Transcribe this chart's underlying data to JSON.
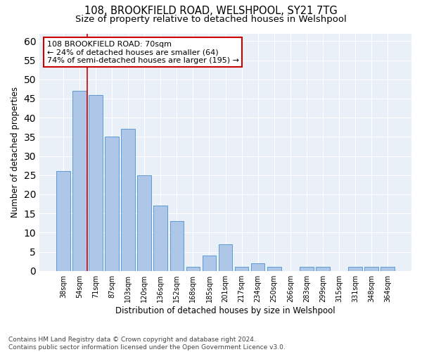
{
  "title": "108, BROOKFIELD ROAD, WELSHPOOL, SY21 7TG",
  "subtitle": "Size of property relative to detached houses in Welshpool",
  "xlabel": "Distribution of detached houses by size in Welshpool",
  "ylabel": "Number of detached properties",
  "categories": [
    "38sqm",
    "54sqm",
    "71sqm",
    "87sqm",
    "103sqm",
    "120sqm",
    "136sqm",
    "152sqm",
    "168sqm",
    "185sqm",
    "201sqm",
    "217sqm",
    "234sqm",
    "250sqm",
    "266sqm",
    "283sqm",
    "299sqm",
    "315sqm",
    "331sqm",
    "348sqm",
    "364sqm"
  ],
  "values": [
    26,
    47,
    46,
    35,
    37,
    25,
    17,
    13,
    1,
    4,
    7,
    1,
    2,
    1,
    0,
    1,
    1,
    0,
    1,
    1,
    1
  ],
  "bar_color": "#aec6e8",
  "bar_edge_color": "#5b9bd5",
  "background_color": "#eaf0f8",
  "grid_color": "#ffffff",
  "annotation_line1": "108 BROOKFIELD ROAD: 70sqm",
  "annotation_line2": "← 24% of detached houses are smaller (64)",
  "annotation_line3": "74% of semi-detached houses are larger (195) →",
  "vline_color": "#cc0000",
  "vline_x": 1.5,
  "ylim": [
    0,
    62
  ],
  "yticks": [
    0,
    5,
    10,
    15,
    20,
    25,
    30,
    35,
    40,
    45,
    50,
    55,
    60
  ],
  "footnote_line1": "Contains HM Land Registry data © Crown copyright and database right 2024.",
  "footnote_line2": "Contains public sector information licensed under the Open Government Licence v3.0.",
  "title_fontsize": 10.5,
  "subtitle_fontsize": 9.5,
  "xlabel_fontsize": 8.5,
  "ylabel_fontsize": 8.5,
  "tick_fontsize": 7,
  "annot_fontsize": 8,
  "footnote_fontsize": 6.5
}
